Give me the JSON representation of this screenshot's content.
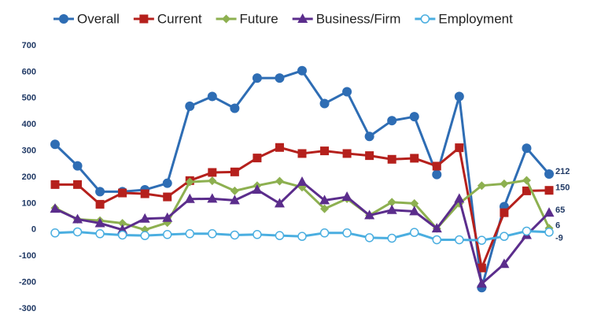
{
  "chart_data": {
    "type": "line",
    "categories": [
      null,
      null,
      null,
      null,
      null,
      null,
      null,
      null,
      null,
      null,
      null,
      null,
      null,
      null,
      null,
      null,
      null,
      null,
      null,
      null,
      null,
      null,
      null
    ],
    "series": [
      {
        "name": "Overall",
        "color": "#2e6db4",
        "marker": "circle",
        "values": [
          325,
          243,
          145,
          145,
          152,
          177,
          470,
          507,
          462,
          577,
          577,
          605,
          480,
          525,
          355,
          415,
          430,
          210,
          507,
          -220,
          88,
          310,
          212
        ]
      },
      {
        "name": "Current",
        "color": "#b5201c",
        "marker": "square",
        "values": [
          172,
          172,
          97,
          140,
          137,
          125,
          187,
          218,
          220,
          273,
          313,
          290,
          300,
          290,
          282,
          268,
          272,
          242,
          312,
          -145,
          65,
          148,
          150
        ]
      },
      {
        "name": "Future",
        "color": "#8db050",
        "marker": "diamond",
        "values": [
          83,
          40,
          35,
          25,
          0,
          27,
          182,
          186,
          148,
          168,
          185,
          162,
          80,
          118,
          55,
          105,
          100,
          5,
          100,
          168,
          175,
          188,
          6
        ]
      },
      {
        "name": "Business/Firm",
        "color": "#5b2d8c",
        "marker": "triangle",
        "values": [
          80,
          40,
          25,
          0,
          42,
          45,
          117,
          118,
          112,
          152,
          100,
          182,
          112,
          125,
          55,
          75,
          70,
          5,
          118,
          -205,
          -130,
          -20,
          65
        ]
      },
      {
        "name": "Employment",
        "color": "#4aaee0",
        "marker": "hollow-circle",
        "values": [
          -12,
          -8,
          -15,
          -20,
          -22,
          -18,
          -15,
          -15,
          -20,
          -18,
          -22,
          -25,
          -12,
          -12,
          -30,
          -32,
          -10,
          -38,
          -38,
          -40,
          -25,
          -5,
          -9
        ]
      }
    ],
    "ylim": [
      -300,
      700
    ],
    "yticks": [
      -300,
      -200,
      -100,
      0,
      100,
      200,
      300,
      400,
      500,
      600,
      700
    ],
    "grid": false,
    "legend": "top",
    "end_labels": true
  }
}
